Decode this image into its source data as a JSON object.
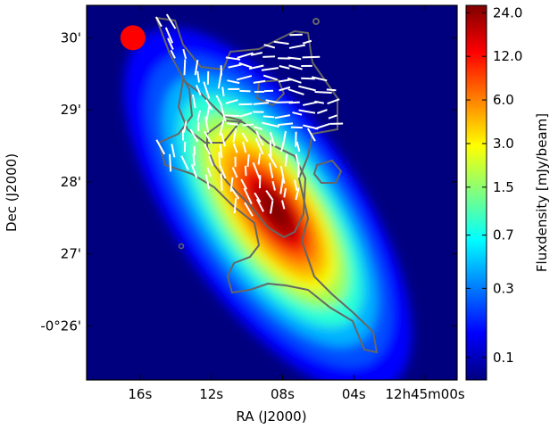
{
  "chart_data": {
    "type": "heatmap",
    "title": "",
    "xlabel": "RA (J2000)",
    "ylabel": "Dec (J2000)",
    "xlim_sec": [
      19.0,
      -1.8
    ],
    "ylim_arcmin": [
      30.45,
      25.25
    ],
    "x_ticks": [
      {
        "value": 16,
        "label": "16s"
      },
      {
        "value": 12,
        "label": "12s"
      },
      {
        "value": 8,
        "label": "08s"
      },
      {
        "value": 4,
        "label": "04s"
      },
      {
        "value": 0,
        "label": "12h45m00s"
      }
    ],
    "y_ticks": [
      {
        "value": 26,
        "label": "-0°26'"
      },
      {
        "value": 27,
        "label": "27'"
      },
      {
        "value": 28,
        "label": "28'"
      },
      {
        "value": 29,
        "label": "29'"
      },
      {
        "value": 30,
        "label": "30'"
      }
    ],
    "colorbar": {
      "label": "Fluxdensity [mJy/beam]",
      "scale": "log",
      "range": [
        0.07,
        27
      ],
      "ticks": [
        "24.0",
        "12.0",
        "6.0",
        "3.0",
        "1.5",
        "0.7",
        "0.3",
        "0.1"
      ],
      "tick_values": [
        24.0,
        12.0,
        6.0,
        3.0,
        1.5,
        0.7,
        0.3,
        0.1
      ]
    },
    "galaxy_emission": {
      "peak_mJy": 24,
      "peak_ra_sec": 8.7,
      "peak_dec_arcmin": 27.6,
      "position_angle_deg": 145,
      "major_extent_arcmin": 4.4,
      "minor_extent_arcmin": 1.9,
      "background_mJy": 0.1
    },
    "polarization_vectors": {
      "color": "#ffffff",
      "count_approx": 150
    },
    "contour_color": "#666666",
    "beam": {
      "color": "#ff0000",
      "ra_sec": 16.4,
      "dec_arcmin": 30.0
    }
  },
  "colors": {
    "colormap": "jet",
    "axis": "#000000",
    "background": "#ffffff"
  }
}
